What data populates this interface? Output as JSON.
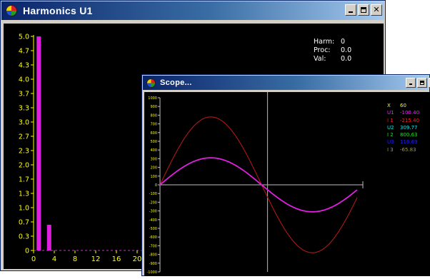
{
  "harmonics_window": {
    "title": "Harmonics  U1",
    "icon": "app-color-wheel-icon",
    "controls": [
      "minimize-icon",
      "maximize-icon",
      "close-icon"
    ],
    "readout": {
      "harm_label": "Harm:",
      "harm_value": "0",
      "proc_label": "Proc:",
      "proc_value": "0.0",
      "val_label": "Val:",
      "val_value": "0.0"
    },
    "chart_data": {
      "type": "bar",
      "x": [
        1,
        3
      ],
      "values": [
        5.0,
        0.6
      ],
      "ylim": [
        0,
        5.0
      ],
      "xlim": [
        0,
        20
      ],
      "y_ticks": [
        "0",
        "0.3",
        "0.7",
        "1.0",
        "1.3",
        "1.7",
        "2.0",
        "2.3",
        "2.7",
        "3.0",
        "3.3",
        "3.7",
        "4.0",
        "4.3",
        "4.7",
        "5.0"
      ],
      "x_ticks": [
        "0",
        "4",
        "8",
        "12",
        "16",
        "20"
      ],
      "bar_color": "#e020e0",
      "axis_color": "#ffff00",
      "background": "#000000"
    }
  },
  "scope_window": {
    "title": "Scope...",
    "icon": "app-color-wheel-icon",
    "controls": [
      "minimize-icon",
      "maximize-icon",
      "close-icon"
    ],
    "readout": [
      {
        "label": "X",
        "value": "60",
        "color": "#ffff00"
      },
      {
        "label": "U1",
        "value": "-100.40",
        "color": "#ff20ff"
      },
      {
        "label": "I 1",
        "value": "-215.40",
        "color": "#ff2020"
      },
      {
        "label": "U2",
        "value": "309.77",
        "color": "#20e0e0"
      },
      {
        "label": "I 2",
        "value": "800.63",
        "color": "#20e020"
      },
      {
        "label": "U3",
        "value": "116.69",
        "color": "#2020ff"
      },
      {
        "label": "I 3",
        "value": "-65.83",
        "color": "#a0a020"
      }
    ],
    "chart_data": {
      "type": "line",
      "ylim": [
        -1000,
        1000
      ],
      "y_ticks": [
        "1000",
        "900",
        "800",
        "700",
        "600",
        "500",
        "400",
        "300",
        "200",
        "100",
        "0",
        "-100",
        "-200",
        "-300",
        "-400",
        "-500",
        "-600",
        "-700",
        "-800",
        "-900",
        "-1000"
      ],
      "series": [
        {
          "color": "#b01818",
          "amplitude": 780,
          "phase_deg": 0
        },
        {
          "color": "#e020e0",
          "amplitude": 310,
          "phase_deg": -20
        }
      ],
      "cursor_x_fraction": 0.53
    }
  }
}
